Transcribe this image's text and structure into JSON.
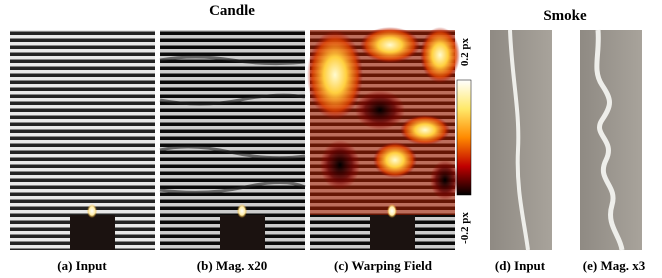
{
  "groups": [
    {
      "title": "Candle"
    },
    {
      "title": "Smoke"
    }
  ],
  "panels": [
    {
      "caption": "(a) Input"
    },
    {
      "caption": "(b) Mag. x20"
    },
    {
      "caption": "(c) Warping Field"
    },
    {
      "caption": "(d) Input"
    },
    {
      "caption": "(e) Mag. x3"
    }
  ],
  "colorbar": {
    "top_label": "0.2 px",
    "bottom_label": "-0.2 px"
  }
}
